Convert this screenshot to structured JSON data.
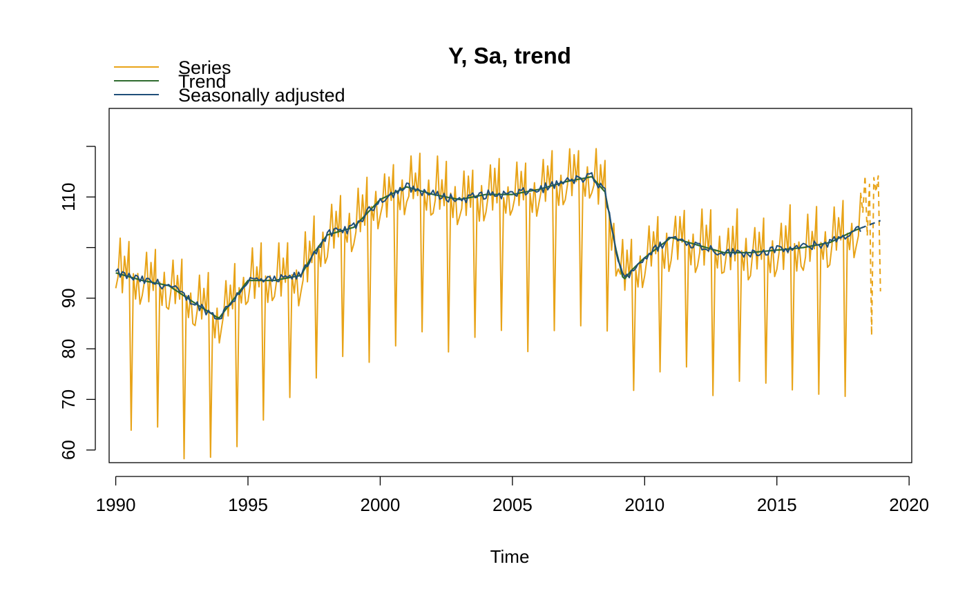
{
  "chart_data": {
    "type": "line",
    "title": "Y, Sa, trend",
    "xlabel": "Time",
    "ylabel": "",
    "xlim": [
      1989.75,
      2020.1
    ],
    "ylim": [
      57.5,
      127.5
    ],
    "x_ticks": [
      1990,
      1995,
      2000,
      2005,
      2010,
      2015,
      2020
    ],
    "y_ticks": [
      60,
      70,
      80,
      90,
      100,
      110,
      120
    ],
    "y_tick_labels": [
      "60",
      "70",
      "80",
      "90",
      "",
      "110",
      ""
    ],
    "legend": [
      {
        "name": "Series",
        "color": "#E8A317"
      },
      {
        "name": "Trend",
        "color": "#2E6B2E"
      },
      {
        "name": "Seasonally adjusted",
        "color": "#1F4E79"
      }
    ],
    "frequency": 12,
    "start": 1990,
    "forecast_start": 2018.167,
    "level_points": {
      "x": [
        1990,
        1991,
        1992,
        1993,
        1993.9,
        1995,
        1996,
        1997,
        1997.5,
        1998,
        1999,
        2000,
        2001,
        2002,
        2003,
        2004,
        2005,
        2006,
        2007,
        2007.5,
        2008,
        2008.5,
        2008.9,
        2009.2,
        2009.5,
        2010,
        2011,
        2012,
        2013,
        2014,
        2015,
        2016,
        2017,
        2018,
        2018.5,
        2019
      ],
      "y": [
        95,
        93.5,
        92.5,
        89,
        86,
        93.5,
        93.5,
        94.5,
        99,
        102.5,
        104,
        109.5,
        112,
        110.5,
        109.5,
        110.5,
        110.5,
        111.5,
        113,
        113.5,
        114,
        111,
        100,
        93.5,
        95.5,
        98,
        102,
        100.5,
        99,
        99,
        99.5,
        100,
        101,
        103.5,
        104.5,
        105.5
      ]
    },
    "seasonal_pattern": [
      -3.5,
      -1,
      6,
      -3,
      4,
      -1,
      7,
      -28,
      0,
      -4,
      2,
      -5
    ],
    "forecast_seasonal": [
      7,
      3,
      10,
      -2,
      8,
      -22,
      9,
      6,
      9,
      -14,
      -10,
      -2
    ],
    "sa_noise_amplitude": 0.9
  }
}
